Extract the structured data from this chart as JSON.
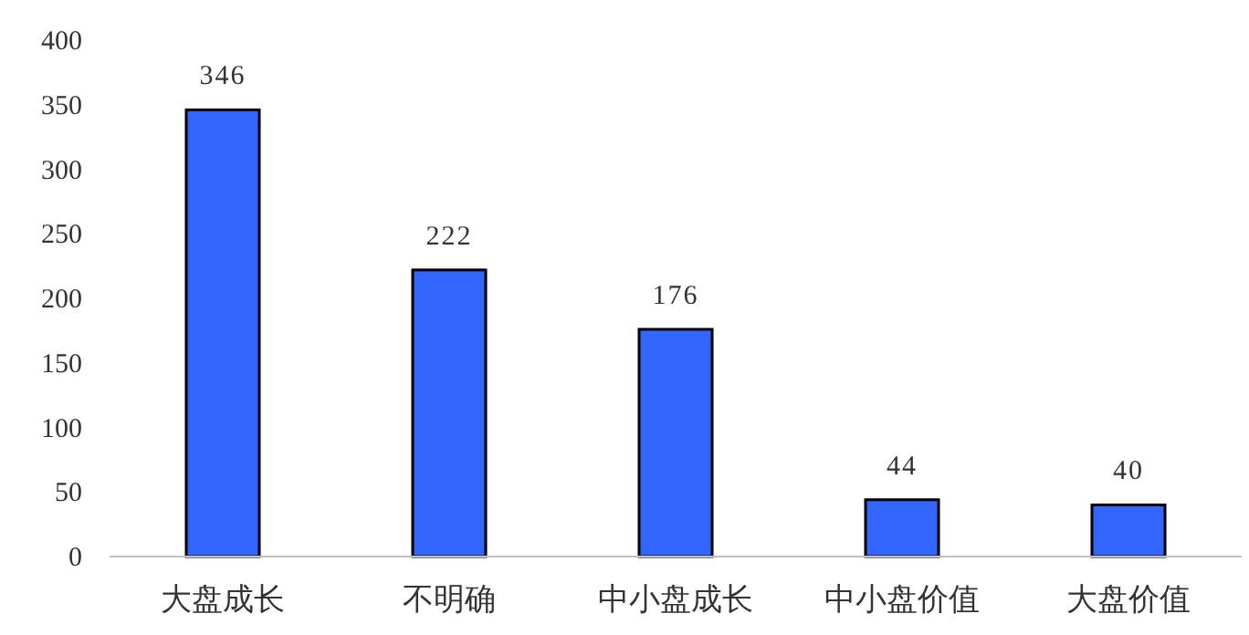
{
  "chart_data": {
    "type": "bar",
    "categories": [
      "大盘成长",
      "不明确",
      "中小盘成长",
      "中小盘价值",
      "大盘价值"
    ],
    "values": [
      346,
      222,
      176,
      44,
      40
    ],
    "color": "#3366ff",
    "ylim": [
      0,
      400
    ],
    "yticks": [
      0,
      50,
      100,
      150,
      200,
      250,
      300,
      350,
      400
    ],
    "data_labels": true,
    "grid": false
  }
}
